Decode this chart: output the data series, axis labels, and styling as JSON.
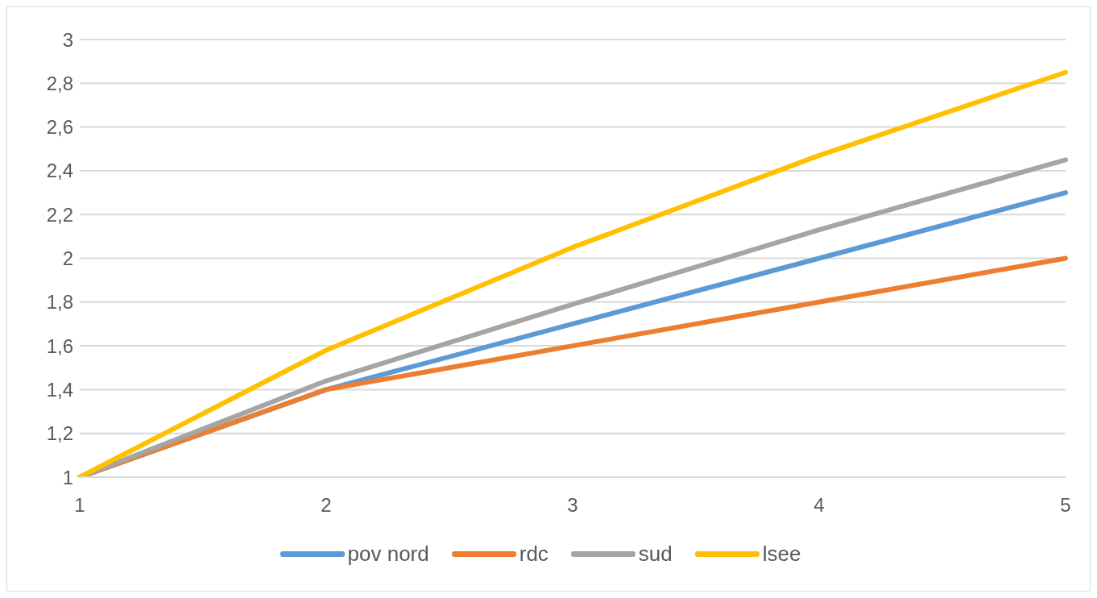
{
  "chart_data": {
    "type": "line",
    "categories": [
      "1",
      "2",
      "3",
      "4",
      "5"
    ],
    "series": [
      {
        "name": "pov nord",
        "color": "#5b9bd5",
        "values": [
          1,
          1.4,
          1.7,
          2.0,
          2.3
        ]
      },
      {
        "name": "rdc",
        "color": "#ed7d31",
        "values": [
          1,
          1.4,
          1.6,
          1.8,
          2.0
        ]
      },
      {
        "name": "sud",
        "color": "#a5a5a5",
        "values": [
          1,
          1.44,
          1.79,
          2.13,
          2.45
        ]
      },
      {
        "name": "lsee",
        "color": "#ffc000",
        "values": [
          1,
          1.58,
          2.05,
          2.47,
          2.85
        ]
      }
    ],
    "ylim": [
      1,
      3
    ],
    "yticks": [
      1,
      {
        "value": 1.2,
        "label": "1,2"
      },
      {
        "value": 1.4,
        "label": "1,4"
      },
      {
        "value": 1.6,
        "label": "1,6"
      },
      {
        "value": 1.8,
        "label": "1,8"
      },
      2,
      {
        "value": 2.2,
        "label": "2,2"
      },
      {
        "value": 2.4,
        "label": "2,4"
      },
      {
        "value": 2.6,
        "label": "2,6"
      },
      {
        "value": 2.8,
        "label": "2,8"
      },
      3
    ],
    "grid": "y",
    "legend": "bottom",
    "marker": "none",
    "line_style": "solid"
  }
}
